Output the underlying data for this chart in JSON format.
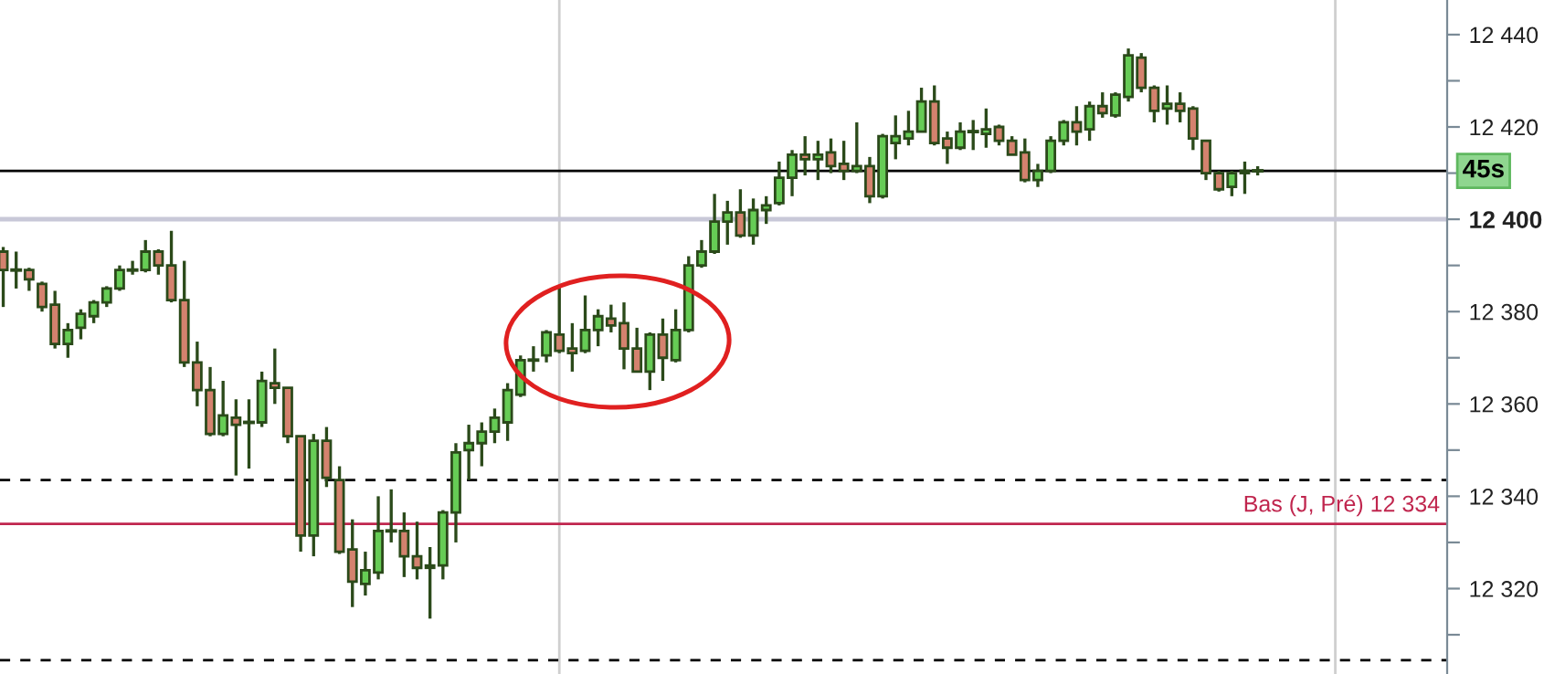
{
  "chart_data": {
    "type": "candlestick",
    "categories": [
      null,
      null,
      null,
      null,
      null,
      null,
      null,
      null,
      null,
      null,
      null,
      null,
      null,
      null,
      null,
      null,
      null,
      null,
      null,
      null,
      null,
      null,
      null,
      null,
      null,
      null,
      null,
      null,
      null,
      null,
      null,
      null,
      null,
      null,
      null,
      null,
      null,
      null,
      null,
      null,
      null,
      null,
      null,
      null,
      null,
      null,
      null,
      null,
      null,
      null,
      null,
      null,
      null,
      null,
      null,
      null,
      null,
      null,
      null,
      null,
      null,
      null,
      null,
      null,
      null,
      null,
      null,
      null,
      null,
      null,
      null,
      null,
      null,
      null,
      null,
      null,
      null,
      null,
      null,
      null,
      null,
      null,
      null,
      null,
      null,
      null,
      null,
      null,
      null,
      null,
      null,
      null,
      null,
      null,
      null,
      null,
      null,
      null,
      null,
      null,
      null,
      null,
      null,
      null,
      null,
      null,
      null,
      null,
      null,
      null,
      null,
      null
    ],
    "ohlc": [
      [
        12393,
        12394,
        12381,
        12389
      ],
      [
        12389,
        12393,
        12385,
        12389
      ],
      [
        12389,
        12389.5,
        12384.5,
        12387
      ],
      [
        12386,
        12386.5,
        12380,
        12381
      ],
      [
        12381.5,
        12384.5,
        12372,
        12373
      ],
      [
        12373,
        12377.5,
        12370,
        12376
      ],
      [
        12376.5,
        12380.5,
        12374,
        12379.5
      ],
      [
        12379,
        12382.5,
        12377.5,
        12382
      ],
      [
        12382,
        12385.5,
        12381,
        12385
      ],
      [
        12385,
        12390,
        12384.5,
        12389
      ],
      [
        12389,
        12391,
        12388,
        12389
      ],
      [
        12389,
        12395.5,
        12388.5,
        12393
      ],
      [
        12393,
        12393.5,
        12388,
        12390
      ],
      [
        12390,
        12397.5,
        12382,
        12382.5
      ],
      [
        12382.5,
        12391,
        12368,
        12369
      ],
      [
        12369,
        12373.5,
        12359.5,
        12363
      ],
      [
        12363,
        12368,
        12353,
        12353.5
      ],
      [
        12353.5,
        12365,
        12353,
        12357.5
      ],
      [
        12357,
        12361,
        12344.5,
        12355.5
      ],
      [
        12356,
        12361,
        12346,
        12356
      ],
      [
        12356,
        12367,
        12355,
        12365
      ],
      [
        12364.5,
        12372,
        12360,
        12363.5
      ],
      [
        12363.5,
        12363.5,
        12351.5,
        12353
      ],
      [
        12353,
        12353,
        12328,
        12331.5
      ],
      [
        12331.5,
        12353.5,
        12327,
        12352
      ],
      [
        12352,
        12355,
        12342,
        12344
      ],
      [
        12343.5,
        12346.5,
        12327.5,
        12328
      ],
      [
        12328.5,
        12335,
        12316,
        12321.5
      ],
      [
        12321,
        12328,
        12318.5,
        12324
      ],
      [
        12323.5,
        12340,
        12322,
        12332.5
      ],
      [
        12332.5,
        12341.5,
        12330,
        12332.5
      ],
      [
        12332.5,
        12336.5,
        12322.5,
        12327
      ],
      [
        12327,
        12334.5,
        12322,
        12324.5
      ],
      [
        12324.5,
        12329,
        12313.5,
        12325
      ],
      [
        12325,
        12337,
        12322,
        12336.5
      ],
      [
        12336.5,
        12351.5,
        12330,
        12349.5
      ],
      [
        12350,
        12355.5,
        12343.5,
        12351.5
      ],
      [
        12351.5,
        12356,
        12346.5,
        12354
      ],
      [
        12354,
        12359,
        12351.5,
        12357
      ],
      [
        12356,
        12364.5,
        12352,
        12363
      ],
      [
        12362,
        12370.5,
        12361.5,
        12369.5
      ],
      [
        12369.5,
        12372.5,
        12367,
        12369.5
      ],
      [
        12370.5,
        12376,
        12369,
        12375.5
      ],
      [
        12375,
        12385.5,
        12371,
        12371.5
      ],
      [
        12372,
        12377.5,
        12367,
        12371
      ],
      [
        12371.5,
        12383.5,
        12371,
        12376
      ],
      [
        12376,
        12380.5,
        12372.5,
        12379
      ],
      [
        12378.5,
        12381.5,
        12375.5,
        12377
      ],
      [
        12377.5,
        12382,
        12367.5,
        12372
      ],
      [
        12372,
        12376.5,
        12367,
        12367
      ],
      [
        12367,
        12375.5,
        12363,
        12375
      ],
      [
        12375,
        12378.5,
        12365,
        12370
      ],
      [
        12369.5,
        12380.5,
        12369,
        12376
      ],
      [
        12376,
        12392,
        12375.5,
        12390
      ],
      [
        12390,
        12395.5,
        12389.5,
        12393
      ],
      [
        12393,
        12405.5,
        12392.5,
        12399.5
      ],
      [
        12399.5,
        12404,
        12394.5,
        12401.5
      ],
      [
        12401.5,
        12406.5,
        12396,
        12396.5
      ],
      [
        12396.5,
        12404.5,
        12394.5,
        12402
      ],
      [
        12402,
        12405,
        12399,
        12403
      ],
      [
        12403.5,
        12412.5,
        12403,
        12409
      ],
      [
        12409,
        12415,
        12405,
        12414
      ],
      [
        12414,
        12418,
        12409.5,
        12413
      ],
      [
        12413,
        12417,
        12408.5,
        12414
      ],
      [
        12414.5,
        12417.5,
        12410,
        12411.5
      ],
      [
        12412,
        12417,
        12408.5,
        12410.5
      ],
      [
        12410.5,
        12421,
        12410,
        12411.5
      ],
      [
        12411.5,
        12413.5,
        12403.5,
        12405
      ],
      [
        12405,
        12418.5,
        12404.5,
        12418
      ],
      [
        12416.5,
        12422.5,
        12413,
        12418
      ],
      [
        12417.5,
        12423.5,
        12416,
        12419
      ],
      [
        12419,
        12428.5,
        12419,
        12425.5
      ],
      [
        12425.5,
        12429,
        12416,
        12416.5
      ],
      [
        12417.5,
        12419,
        12412,
        12415.5
      ],
      [
        12415.5,
        12421,
        12415,
        12419
      ],
      [
        12419,
        12421.5,
        12415,
        12419
      ],
      [
        12418.5,
        12424,
        12415.5,
        12419.5
      ],
      [
        12420,
        12420.5,
        12416,
        12417
      ],
      [
        12417,
        12418,
        12414,
        12414
      ],
      [
        12414.5,
        12417.5,
        12408,
        12408.5
      ],
      [
        12408.5,
        12412,
        12407,
        12410.5
      ],
      [
        12410.5,
        12418,
        12410,
        12417
      ],
      [
        12417,
        12421.5,
        12416,
        12421
      ],
      [
        12421,
        12424.5,
        12416,
        12419
      ],
      [
        12419.5,
        12425.5,
        12417,
        12424.5
      ],
      [
        12424.5,
        12427.5,
        12422,
        12423
      ],
      [
        12422.5,
        12427.5,
        12422,
        12427
      ],
      [
        12426.5,
        12437,
        12425.5,
        12435.5
      ],
      [
        12435,
        12436,
        12427.5,
        12428.5
      ],
      [
        12428.5,
        12429,
        12421,
        12423.5
      ],
      [
        12424,
        12429,
        12420.5,
        12425
      ],
      [
        12425,
        12427.5,
        12421,
        12423.5
      ],
      [
        12424,
        12424.5,
        12415,
        12417.5
      ],
      [
        12417,
        12417,
        12408.5,
        12410
      ],
      [
        12410,
        12410.5,
        12406,
        12406.5
      ],
      [
        12407,
        12410.5,
        12405,
        12410
      ],
      [
        12410,
        12412.5,
        12405.5,
        12410.5
      ],
      [
        12410.5,
        12411.5,
        12409.5,
        12410.5
      ],
      null,
      null,
      null,
      null,
      null,
      null,
      null,
      null,
      null,
      null,
      null,
      null,
      null,
      null
    ],
    "colors": [
      "#d4826e",
      "#2b4a1a",
      "#d4826e",
      "#d4826e",
      "#d4826e",
      "#66cc55",
      "#66cc55",
      "#66cc55",
      "#66cc55",
      "#66cc55",
      "#2b4a1a",
      "#66cc55",
      "#d4826e",
      "#d4826e",
      "#d4826e",
      "#d4826e",
      "#d4826e",
      "#66cc55",
      "#d4826e",
      "#2b4a1a",
      "#66cc55",
      "#d4826e",
      "#d4826e",
      "#d4826e",
      "#66cc55",
      "#d4826e",
      "#d4826e",
      "#d4826e",
      "#66cc55",
      "#66cc55",
      "#2b4a1a",
      "#d4826e",
      "#d4826e",
      "#66cc55",
      "#66cc55",
      "#66cc55",
      "#66cc55",
      "#66cc55",
      "#66cc55",
      "#66cc55",
      "#66cc55",
      "#2b4a1a",
      "#66cc55",
      "#d4826e",
      "#d4826e",
      "#66cc55",
      "#66cc55",
      "#d4826e",
      "#d4826e",
      "#d4826e",
      "#66cc55",
      "#d4826e",
      "#66cc55",
      "#66cc55",
      "#66cc55",
      "#66cc55",
      "#66cc55",
      "#d4826e",
      "#66cc55",
      "#66cc55",
      "#66cc55",
      "#66cc55",
      "#d4826e",
      "#66cc55",
      "#d4826e",
      "#d4826e",
      "#66cc55",
      "#d4826e",
      "#66cc55",
      "#66cc55",
      "#66cc55",
      "#66cc55",
      "#d4826e",
      "#d4826e",
      "#66cc55",
      "#2b4a1a",
      "#66cc55",
      "#d4826e",
      "#d4826e",
      "#d4826e",
      "#66cc55",
      "#66cc55",
      "#66cc55",
      "#d4826e",
      "#66cc55",
      "#d4826e",
      "#66cc55",
      "#66cc55",
      "#d4826e",
      "#d4826e",
      "#66cc55",
      "#d4826e",
      "#d4826e",
      "#d4826e",
      "#d4826e",
      "#66cc55",
      "#66cc55",
      "#2b4a1a",
      null,
      null,
      null,
      null,
      null,
      null,
      null,
      null,
      null,
      null,
      null,
      null,
      null,
      null
    ],
    "ylim": [
      12301.5,
      12447.5
    ],
    "yticks": [
      {
        "value": 12310,
        "label": null
      },
      {
        "value": 12320,
        "label": "12 320"
      },
      {
        "value": 12330,
        "label": null
      },
      {
        "value": 12340,
        "label": "12 340"
      },
      {
        "value": 12350,
        "label": null
      },
      {
        "value": 12360,
        "label": "12 360"
      },
      {
        "value": 12370,
        "label": null
      },
      {
        "value": 12380,
        "label": "12 380"
      },
      {
        "value": 12390,
        "label": null
      },
      {
        "value": 12400,
        "label": "12 400"
      },
      {
        "value": 12410,
        "label": null
      },
      {
        "value": 12420,
        "label": "12 420"
      },
      {
        "value": 12430,
        "label": null
      },
      {
        "value": 12440,
        "label": "12 440"
      }
    ],
    "ref_lines": [
      {
        "axis": "y",
        "value": 12400,
        "color": "#c8c8d8",
        "line_style": "solid"
      },
      {
        "axis": "y",
        "value": 12343.5,
        "color": "#000000",
        "line_style": "dashed"
      },
      {
        "axis": "y",
        "value": 12304.5,
        "color": "#000000",
        "line_style": "dashed"
      },
      {
        "axis": "y",
        "value": 12334,
        "color": "#c0264e",
        "line_style": "solid",
        "label": "Bas (J, Pré) 12 334"
      },
      {
        "axis": "y",
        "value": 12410.5,
        "color": "#000000",
        "line_style": "solid",
        "label": "45s"
      }
    ],
    "grid": false,
    "legend": false
  }
}
